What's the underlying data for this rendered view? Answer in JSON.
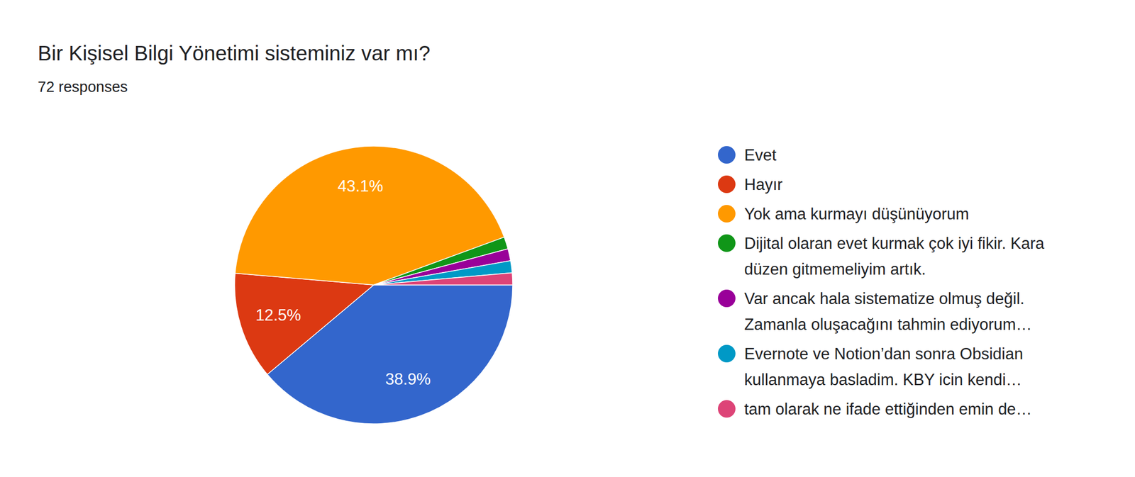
{
  "chart_data": {
    "type": "pie",
    "title": "Bir Kişisel Bilgi Yönetimi sisteminiz var mı?",
    "subtitle": "72 responses",
    "categories": [
      "Evet",
      "Hayır",
      "Yok ama kurmayı düşünüyorum",
      "Dijital olaran evet kurmak çok iyi fikir. Kara düzen gitmemeliyim artık.",
      "Var ancak hala sistematize olmuş değil. Zamanla oluşacağını tahmin ediyorum…",
      "Evernote ve Notion’dan sonra Obsidian kullanmaya basladim. KBY icin kendi…",
      "tam olarak ne ifade ettiğinden emin de…"
    ],
    "values": [
      38.9,
      12.5,
      43.1,
      1.4,
      1.4,
      1.4,
      1.4
    ],
    "value_labels": [
      "38.9%",
      "12.5%",
      "43.1%",
      null,
      null,
      null,
      null
    ],
    "data_labels": true,
    "colors": [
      "#3366cc",
      "#dc3912",
      "#ff9900",
      "#109618",
      "#990099",
      "#0099c6",
      "#dd4477"
    ],
    "legend": "right"
  }
}
